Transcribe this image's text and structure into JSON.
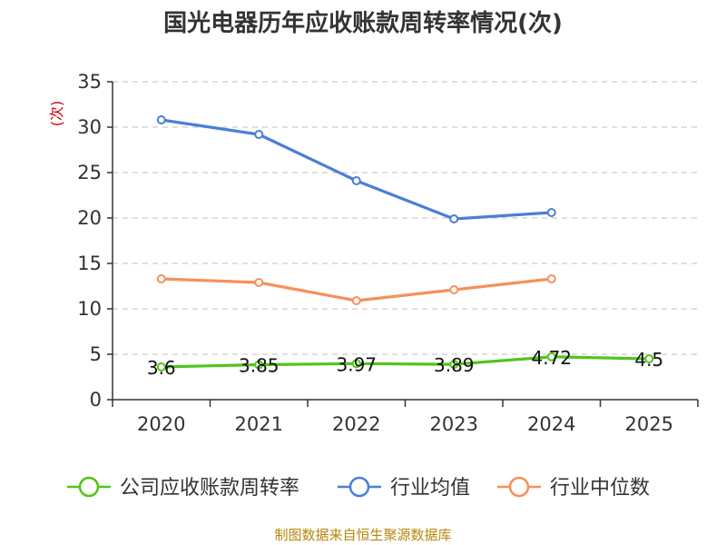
{
  "chart_data": {
    "type": "line",
    "title": "国光电器历年应收账款周转率情况(次)",
    "ylabel": "(次)",
    "xlabel": "",
    "categories": [
      "2020",
      "2021",
      "2022",
      "2023",
      "2024",
      "2025"
    ],
    "ylim": [
      0,
      35
    ],
    "yticks": [
      0,
      5,
      10,
      15,
      20,
      25,
      30,
      35
    ],
    "grid": true,
    "legend_position": "bottom",
    "series": [
      {
        "name": "公司应收账款周转率",
        "color": "#52c41a",
        "values": [
          3.6,
          3.85,
          3.97,
          3.89,
          4.72,
          4.5
        ],
        "labels": [
          "3.6",
          "3.85",
          "3.97",
          "3.89",
          "4.72",
          "4.5"
        ]
      },
      {
        "name": "行业均值",
        "color": "#4a7fd8",
        "values": [
          30.8,
          29.2,
          24.1,
          19.9,
          20.6,
          null
        ]
      },
      {
        "name": "行业中位数",
        "color": "#f6905a",
        "values": [
          13.3,
          12.9,
          10.9,
          12.1,
          13.3,
          null
        ]
      }
    ],
    "source": "制图数据来自恒生聚源数据库"
  }
}
